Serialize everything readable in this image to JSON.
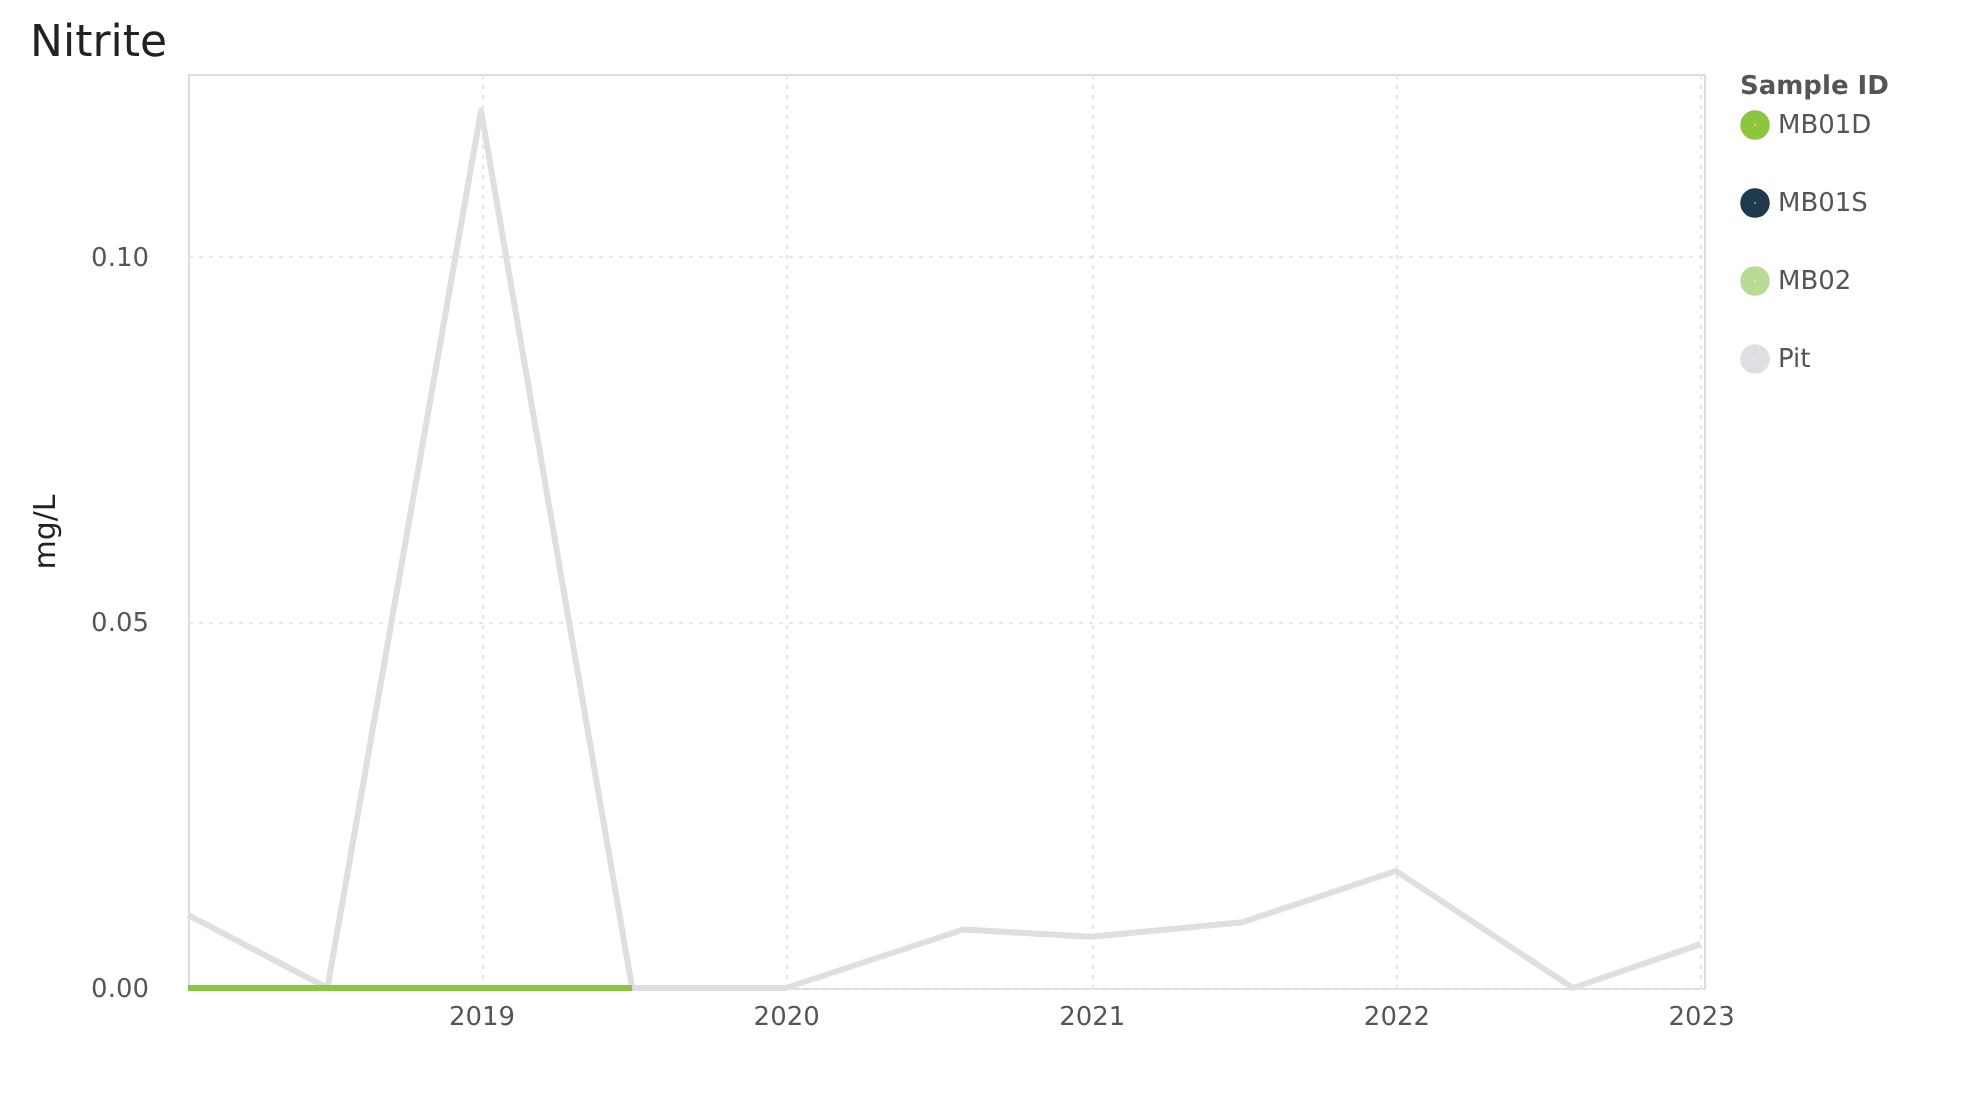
{
  "chart_data": {
    "type": "line",
    "title": "Nitrite",
    "ylabel": "mg/L",
    "legend_title": "Sample ID",
    "xlim": [
      "2018-01-15",
      "2023-01-05"
    ],
    "xticks": [
      "2019",
      "2020",
      "2021",
      "2022",
      "2023"
    ],
    "ylim": [
      0,
      0.125
    ],
    "yticks": [
      {
        "value": 0,
        "label": "0.00"
      },
      0.05,
      {
        "value": 0.1,
        "label": "0.10"
      }
    ],
    "grid": true,
    "legend": "top right",
    "marker": "none",
    "line_style": "solid",
    "series": [
      {
        "name": "Pit",
        "color": "#dedee3",
        "x": [
          "2018-01-15",
          "2018-07",
          "2019-01",
          "2019-07",
          "2020-01",
          "2020-08",
          "2021-01",
          "2021-07",
          "2022-01",
          "2022-08",
          "2023-01"
        ],
        "values": [
          0.01,
          0,
          0.12,
          0,
          0,
          0.008,
          0.007,
          0.009,
          0.016,
          0,
          0.006
        ]
      },
      {
        "name": "MB01D",
        "color": "#8cc63f",
        "x": [
          "2018-01-15",
          "2018-07",
          "2019-01",
          "2019-07"
        ],
        "values": [
          0,
          0,
          0,
          0
        ]
      },
      {
        "name": "MB01S",
        "color": "#1e3a4c"
      },
      {
        "name": "MB02",
        "color": "#b8dc96"
      }
    ]
  }
}
